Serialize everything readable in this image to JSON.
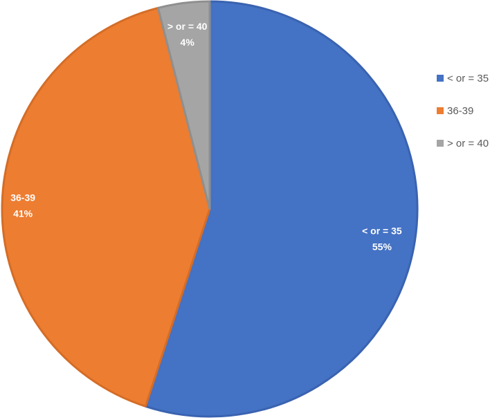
{
  "chart_data": {
    "type": "pie",
    "title": "",
    "categories": [
      "< or = 35",
      "36-39",
      "> or = 40"
    ],
    "values": [
      55,
      41,
      4
    ],
    "value_suffix": "%",
    "colors": [
      "#4472c4",
      "#ed7d31",
      "#a5a5a5"
    ],
    "slice_border_colors": [
      "#3a63b0",
      "#d46d27",
      "#8f8f8f"
    ],
    "start_angle_deg": 0,
    "direction": "clockwise",
    "data_labels": [
      {
        "category": "< or = 35",
        "value": "55%"
      },
      {
        "category": "36-39",
        "value": "41%"
      },
      {
        "category": "> or = 40",
        "value": "4%"
      }
    ],
    "legend": {
      "placement": "right",
      "entries": [
        "< or = 35",
        "36-39",
        "> or = 40"
      ]
    }
  }
}
